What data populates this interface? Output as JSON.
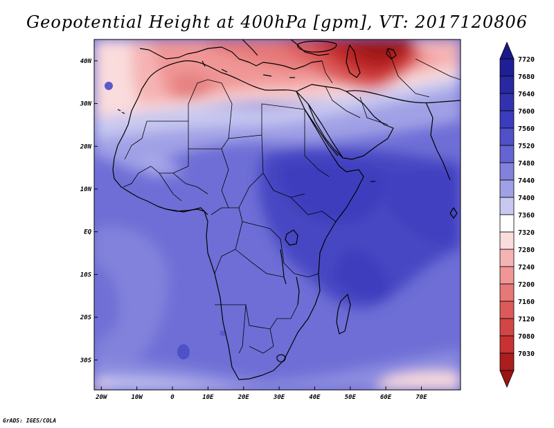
{
  "title": "Geopotential Height at 400hPa [gpm], VT: 2017120806",
  "credit": "GrADS: IGES/COLA",
  "map": {
    "lon_range": [
      -22,
      81
    ],
    "lat_range": [
      -37,
      45
    ],
    "lon_ticks": [
      {
        "value": -20,
        "label": "20W"
      },
      {
        "value": -10,
        "label": "10W"
      },
      {
        "value": 0,
        "label": "0"
      },
      {
        "value": 10,
        "label": "10E"
      },
      {
        "value": 20,
        "label": "20E"
      },
      {
        "value": 30,
        "label": "30E"
      },
      {
        "value": 40,
        "label": "40E"
      },
      {
        "value": 50,
        "label": "50E"
      },
      {
        "value": 60,
        "label": "60E"
      },
      {
        "value": 70,
        "label": "70E"
      }
    ],
    "lat_ticks": [
      {
        "value": 40,
        "label": "40N"
      },
      {
        "value": 30,
        "label": "30N"
      },
      {
        "value": 20,
        "label": "20N"
      },
      {
        "value": 10,
        "label": "10N"
      },
      {
        "value": 0,
        "label": "EQ"
      },
      {
        "value": -10,
        "label": "10S"
      },
      {
        "value": -20,
        "label": "20S"
      },
      {
        "value": -30,
        "label": "30S"
      }
    ]
  },
  "colorbar": {
    "levels": [
      {
        "label": "7720",
        "color": "#1e1e96"
      },
      {
        "label": "7680",
        "color": "#2828a0"
      },
      {
        "label": "7640",
        "color": "#3232af"
      },
      {
        "label": "7600",
        "color": "#3c3cbe"
      },
      {
        "label": "7560",
        "color": "#5050c8"
      },
      {
        "label": "7520",
        "color": "#6464d2"
      },
      {
        "label": "7480",
        "color": "#8282dc"
      },
      {
        "label": "7440",
        "color": "#a0a0e6"
      },
      {
        "label": "7400",
        "color": "#c8c8f0"
      },
      {
        "label": "7360",
        "color": "#ffffff"
      },
      {
        "label": "7320",
        "color": "#fadcdc"
      },
      {
        "label": "7280",
        "color": "#f5b4b4"
      },
      {
        "label": "7240",
        "color": "#f09696"
      },
      {
        "label": "7200",
        "color": "#e67878"
      },
      {
        "label": "7160",
        "color": "#dc5a5a"
      },
      {
        "label": "7120",
        "color": "#d24646"
      },
      {
        "label": "7080",
        "color": "#c83232"
      },
      {
        "label": "7030",
        "color": "#aa1e1e"
      }
    ],
    "top_color": "#19198c",
    "bottom_color": "#9b1414"
  }
}
